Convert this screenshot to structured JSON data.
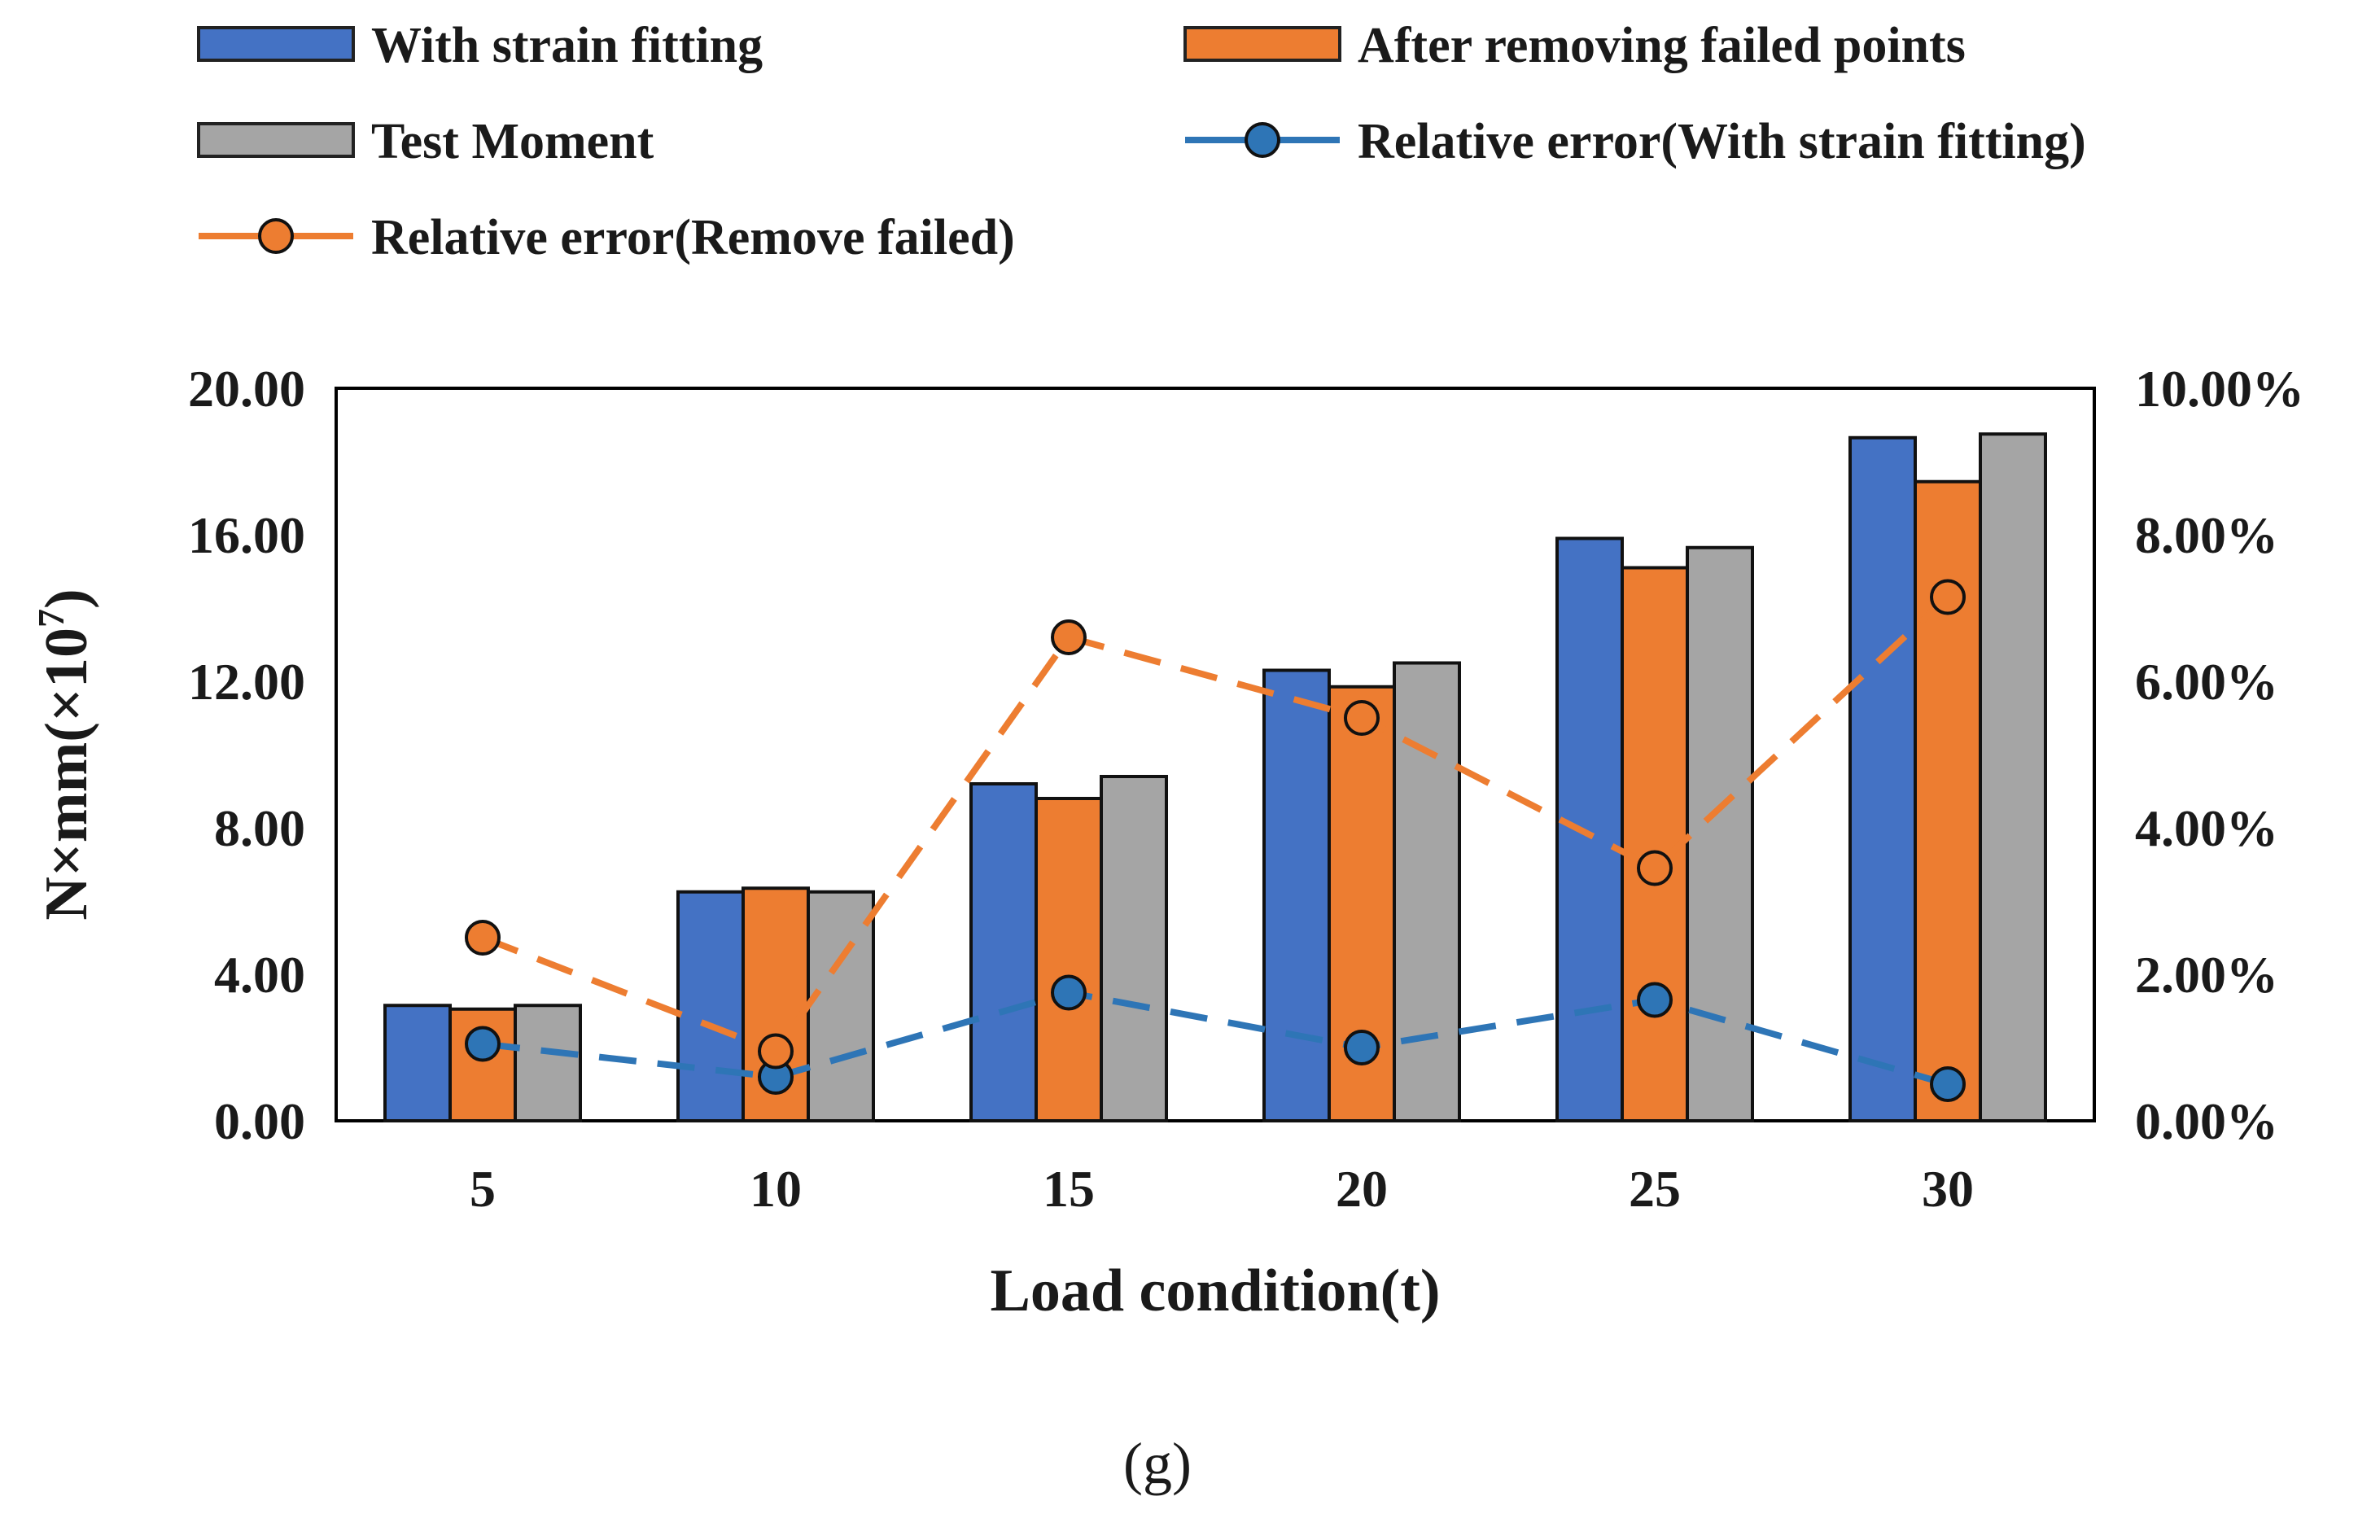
{
  "chart_data": {
    "type": "bar",
    "title": "",
    "caption": "(g)",
    "xlabel": "Load condition(t)",
    "ylabel": "N×mm(×10",
    "ylabel_sup": "7",
    "ylabel_close": ")",
    "categories": [
      "5",
      "10",
      "15",
      "20",
      "25",
      "30"
    ],
    "ylim": [
      0,
      20
    ],
    "yticks": [
      "0.00",
      "4.00",
      "8.00",
      "12.00",
      "16.00",
      "20.00"
    ],
    "y2lim": [
      0,
      10
    ],
    "y2ticks": [
      "0.00%",
      "2.00%",
      "4.00%",
      "6.00%",
      "8.00%",
      "10.00%"
    ],
    "legend_position": "top",
    "series": [
      {
        "name": "With strain fitting",
        "kind": "bar",
        "axis": "left",
        "color": "#4472C4",
        "values": [
          3.15,
          6.25,
          9.2,
          12.3,
          15.9,
          18.65
        ]
      },
      {
        "name": "After removing failed points",
        "kind": "bar",
        "axis": "left",
        "color": "#ED7D31",
        "values": [
          3.05,
          6.35,
          8.8,
          11.85,
          15.1,
          17.45
        ]
      },
      {
        "name": "Test Moment",
        "kind": "bar",
        "axis": "left",
        "color": "#A5A5A5",
        "values": [
          3.15,
          6.25,
          9.4,
          12.5,
          15.65,
          18.75
        ]
      },
      {
        "name": "Relative error(With strain fitting)",
        "kind": "line",
        "axis": "right",
        "color": "#2E75B6",
        "values": [
          1.05,
          0.6,
          1.75,
          1.0,
          1.65,
          0.5
        ]
      },
      {
        "name": "Relative error(Remove failed)",
        "kind": "line",
        "axis": "right",
        "color": "#ED7D31",
        "values": [
          2.5,
          0.95,
          6.6,
          5.5,
          3.45,
          7.15
        ]
      }
    ]
  }
}
